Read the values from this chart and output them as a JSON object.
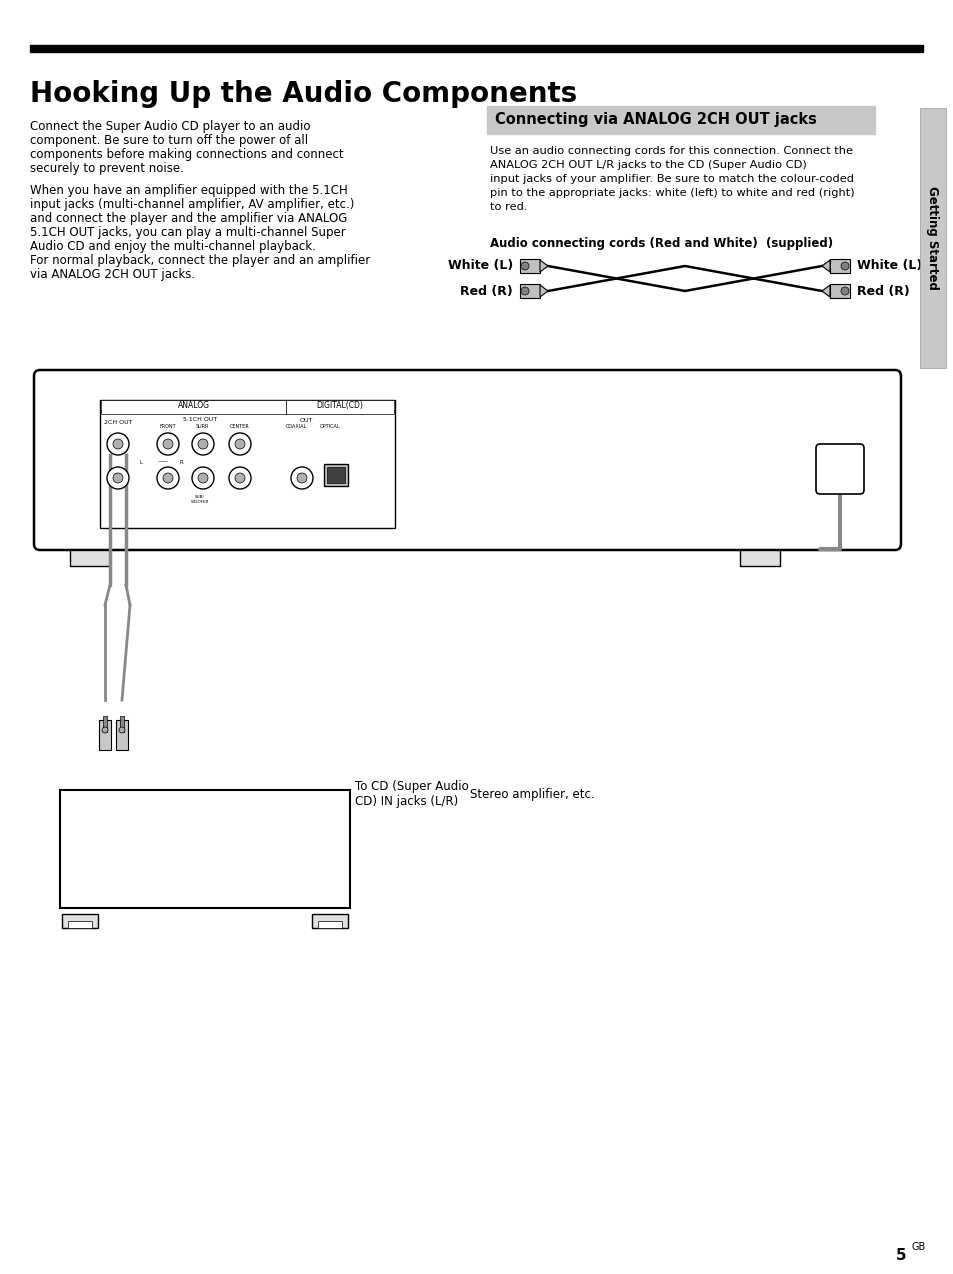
{
  "title": "Hooking Up the Audio Components",
  "page_number": "5",
  "page_suffix": "GB",
  "left_body_text_para1": [
    "Connect the Super Audio CD player to an audio",
    "component. Be sure to turn off the power of all",
    "components before making connections and connect",
    "securely to prevent noise."
  ],
  "left_body_text_para2": [
    "When you have an amplifier equipped with the 5.1CH",
    "input jacks (multi-channel amplifier, AV amplifier, etc.)",
    "and connect the player and the amplifier via ANALOG",
    "5.1CH OUT jacks, you can play a multi-channel Super",
    "Audio CD and enjoy the multi-channel playback.",
    "For normal playback, connect the player and an amplifier",
    "via ANALOG 2CH OUT jacks."
  ],
  "right_box_title": "Connecting via ANALOG 2CH OUT jacks",
  "right_body_text": [
    "Use an audio connecting cords for this connection. Connect the",
    "ANALOG 2CH OUT L/R jacks to the CD (Super Audio CD)",
    "input jacks of your amplifier. Be sure to match the colour-coded",
    "pin to the appropriate jacks: white (left) to white and red (right)",
    "to red."
  ],
  "cord_label": "Audio connecting cords (Red and White)  (supplied)",
  "white_l_label_left": "White (L)",
  "red_r_label_left": "Red (R)",
  "white_l_label_right": "White (L)",
  "red_r_label_right": "Red (R)",
  "side_tab_text": "Getting Started",
  "diagram_label1": "To CD (Super Audio\nCD) IN jacks (L/R)",
  "diagram_label2": "Stereo amplifier, etc.",
  "background_color": "#ffffff",
  "box_bg_color": "#c8c8c8",
  "side_tab_color": "#c8c8c8",
  "text_color": "#000000"
}
